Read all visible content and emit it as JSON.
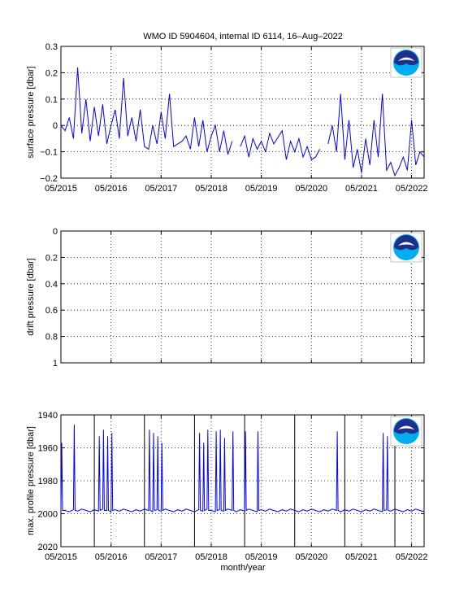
{
  "figure": {
    "title": "WMO ID 5904604, internal ID 6114, 16–Aug–2022",
    "xlabel": "month/year"
  },
  "colors": {
    "line": "#0000ff",
    "axes": "#000000",
    "grid": "#000000",
    "logo_blue": "#1e2f8c",
    "logo_light": "#00aeef"
  },
  "chart_data": [
    {
      "type": "line",
      "name": "surface",
      "ylabel": "surface pressure [dbar]",
      "ylim": [
        -0.2,
        0.3
      ],
      "yticks": [
        -0.2,
        -0.1,
        0,
        0.1,
        0.2,
        0.3
      ],
      "ytick_labels": [
        "−0.2",
        "−0.1",
        "0",
        "0.1",
        "0.2",
        "0.3"
      ],
      "y_reversed": false,
      "grid": true,
      "logo_icon": "noaa-logo",
      "logo_text": "NOAA",
      "x_range": [
        "2015-05",
        "2022-08"
      ],
      "xtick_labels": [
        "05/2015",
        "05/2016",
        "05/2017",
        "05/2018",
        "05/2019",
        "05/2020",
        "05/2021",
        "05/2022"
      ],
      "points": [
        [
          "2015-05",
          0.0
        ],
        [
          "2015-06",
          -0.02
        ],
        [
          "2015-07",
          0.03
        ],
        [
          "2015-08",
          -0.05
        ],
        [
          "2015-09",
          0.22
        ],
        [
          "2015-10",
          -0.03
        ],
        [
          "2015-11",
          0.1
        ],
        [
          "2015-12",
          -0.06
        ],
        [
          "2016-01",
          0.07
        ],
        [
          "2016-02",
          -0.04
        ],
        [
          "2016-03",
          0.08
        ],
        [
          "2016-04",
          -0.07
        ],
        [
          "2016-05",
          0.0
        ],
        [
          "2016-06",
          0.06
        ],
        [
          "2016-07",
          -0.05
        ],
        [
          "2016-08",
          0.18
        ],
        [
          "2016-09",
          -0.04
        ],
        [
          "2016-10",
          0.03
        ],
        [
          "2016-11",
          -0.06
        ],
        [
          "2016-12",
          0.06
        ],
        [
          "2017-01",
          -0.08
        ],
        [
          "2017-02",
          -0.09
        ],
        [
          "2017-03",
          0.0
        ],
        [
          "2017-04",
          -0.07
        ],
        [
          "2017-05",
          0.05
        ],
        [
          "2017-06",
          -0.05
        ],
        [
          "2017-07",
          0.12
        ],
        [
          "2017-08",
          -0.08
        ],
        [
          "2017-09",
          -0.07
        ],
        [
          "2017-10",
          -0.06
        ],
        [
          "2017-11",
          -0.04
        ],
        [
          "2017-12",
          -0.09
        ],
        [
          "2018-01",
          0.03
        ],
        [
          "2018-02",
          -0.08
        ],
        [
          "2018-03",
          0.02
        ],
        [
          "2018-04",
          -0.1
        ],
        [
          "2018-05",
          -0.04
        ],
        [
          "2018-06",
          0.0
        ],
        [
          "2018-07",
          -0.1
        ],
        [
          "2018-08",
          -0.02
        ],
        [
          "2018-09",
          -0.11
        ],
        [
          "2018-10",
          -0.06
        ]
      ],
      "points_2": [
        [
          "2018-12",
          -0.08
        ],
        [
          "2019-01",
          -0.04
        ],
        [
          "2019-02",
          -0.12
        ],
        [
          "2019-03",
          -0.05
        ],
        [
          "2019-04",
          -0.09
        ],
        [
          "2019-05",
          -0.06
        ],
        [
          "2019-06",
          -0.1
        ],
        [
          "2019-07",
          -0.03
        ],
        [
          "2019-08",
          -0.07
        ],
        [
          "2019-10",
          -0.02
        ],
        [
          "2019-11",
          -0.13
        ],
        [
          "2019-12",
          -0.06
        ],
        [
          "2020-01",
          -0.1
        ],
        [
          "2020-02",
          -0.05
        ],
        [
          "2020-03",
          -0.12
        ],
        [
          "2020-04",
          -0.08
        ],
        [
          "2020-05",
          -0.13
        ],
        [
          "2020-06",
          -0.12
        ],
        [
          "2020-07",
          -0.09
        ]
      ],
      "points_3": [
        [
          "2020-09",
          -0.07
        ],
        [
          "2020-10",
          0.0
        ],
        [
          "2020-11",
          -0.1
        ],
        [
          "2020-12",
          0.12
        ],
        [
          "2021-01",
          -0.13
        ],
        [
          "2021-02",
          0.02
        ],
        [
          "2021-03",
          -0.16
        ],
        [
          "2021-04",
          -0.09
        ],
        [
          "2021-05",
          -0.18
        ],
        [
          "2021-06",
          -0.05
        ],
        [
          "2021-07",
          -0.15
        ],
        [
          "2021-08",
          0.02
        ],
        [
          "2021-09",
          -0.12
        ],
        [
          "2021-10",
          0.12
        ],
        [
          "2021-11",
          -0.17
        ],
        [
          "2021-12",
          -0.14
        ],
        [
          "2022-01",
          -0.19
        ],
        [
          "2022-02",
          -0.16
        ],
        [
          "2022-03",
          -0.12
        ],
        [
          "2022-04",
          -0.17
        ],
        [
          "2022-05",
          0.02
        ],
        [
          "2022-06",
          -0.15
        ],
        [
          "2022-07",
          -0.1
        ],
        [
          "2022-08",
          -0.12
        ]
      ]
    },
    {
      "type": "line",
      "name": "drift",
      "ylabel": "drift pressure [dbar]",
      "ylim": [
        0,
        1
      ],
      "yticks": [
        0,
        0.2,
        0.4,
        0.6,
        0.8,
        1
      ],
      "ytick_labels": [
        "0",
        "0.2",
        "0.4",
        "0.6",
        "0.8",
        "1"
      ],
      "y_reversed": true,
      "grid": true,
      "logo_icon": "noaa-logo",
      "logo_text": "NOAA",
      "x_range": [
        "2015-05",
        "2022-08"
      ],
      "xtick_labels": [
        "",
        "",
        "",
        "",
        "",
        "",
        "",
        ""
      ],
      "points": []
    },
    {
      "type": "line",
      "name": "max-profile",
      "ylabel": "max. profile pressure [dbar]",
      "ylim": [
        1940,
        2020
      ],
      "yticks": [
        1940,
        1960,
        1980,
        2000,
        2020
      ],
      "ytick_labels": [
        "1940",
        "1960",
        "1980",
        "2000",
        "2020"
      ],
      "y_reversed": true,
      "grid": true,
      "logo_icon": "noaa-logo",
      "logo_text": "NOAA",
      "x_range": [
        "2015-05",
        "2022-08"
      ],
      "xtick_labels": [
        "05/2015",
        "05/2016",
        "05/2017",
        "05/2018",
        "05/2019",
        "05/2020",
        "05/2021",
        "05/2022"
      ],
      "year_lines": [
        "2016-01",
        "2017-01",
        "2018-01",
        "2019-01",
        "2020-01",
        "2021-01",
        "2022-01"
      ],
      "baseline": 1998,
      "spikes": [
        [
          "2015-05",
          1957
        ],
        [
          "2015-08",
          1946
        ],
        [
          "2016-02",
          1953
        ],
        [
          "2016-03",
          1949
        ],
        [
          "2016-04",
          1953
        ],
        [
          "2016-05",
          1951
        ],
        [
          "2017-02",
          1949
        ],
        [
          "2017-03",
          1951
        ],
        [
          "2017-04",
          1953
        ],
        [
          "2017-05",
          1957
        ],
        [
          "2018-02",
          1951
        ],
        [
          "2018-03",
          1957
        ],
        [
          "2018-04",
          1949
        ],
        [
          "2018-06",
          1950
        ],
        [
          "2018-07",
          1949
        ],
        [
          "2018-08",
          1954
        ],
        [
          "2018-10",
          1950
        ],
        [
          "2019-01",
          1950
        ],
        [
          "2019-04",
          1950
        ],
        [
          "2020-11",
          1950
        ],
        [
          "2021-10",
          1951
        ],
        [
          "2021-11",
          1953
        ]
      ]
    }
  ]
}
